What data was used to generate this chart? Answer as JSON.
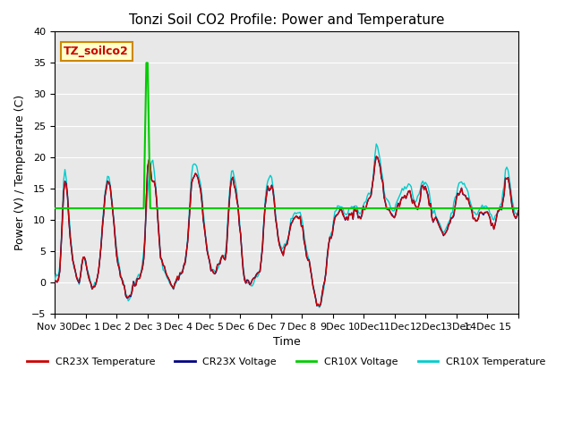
{
  "title": "Tonzi Soil CO2 Profile: Power and Temperature",
  "xlabel": "Time",
  "ylabel": "Power (V) / Temperature (C)",
  "ylim": [
    -5,
    40
  ],
  "background_color": "#e8e8e8",
  "plot_bg_color": "#e8e8e8",
  "annotation_text": "TZ_soilco2",
  "annotation_bg": "#ffffcc",
  "annotation_border": "#cc8800",
  "cr23x_temp_color": "#cc0000",
  "cr23x_volt_color": "#000080",
  "cr10x_volt_color": "#00cc00",
  "cr10x_temp_color": "#00cccc",
  "cr10x_volt_level": 11.8,
  "legend_labels": [
    "CR23X Temperature",
    "CR23X Voltage",
    "CR10X Voltage",
    "CR10X Temperature"
  ],
  "x_tick_labels": [
    "Nov 30",
    "Dec 1",
    "Dec 2",
    "Dec 3",
    "Dec 4",
    "Dec 5",
    "Dec 6",
    "Dec 7",
    "Dec 8",
    "9Dec",
    "10Dec",
    "11Dec",
    "12Dec",
    "13Dec",
    "14Dec 15"
  ],
  "n_points": 360
}
